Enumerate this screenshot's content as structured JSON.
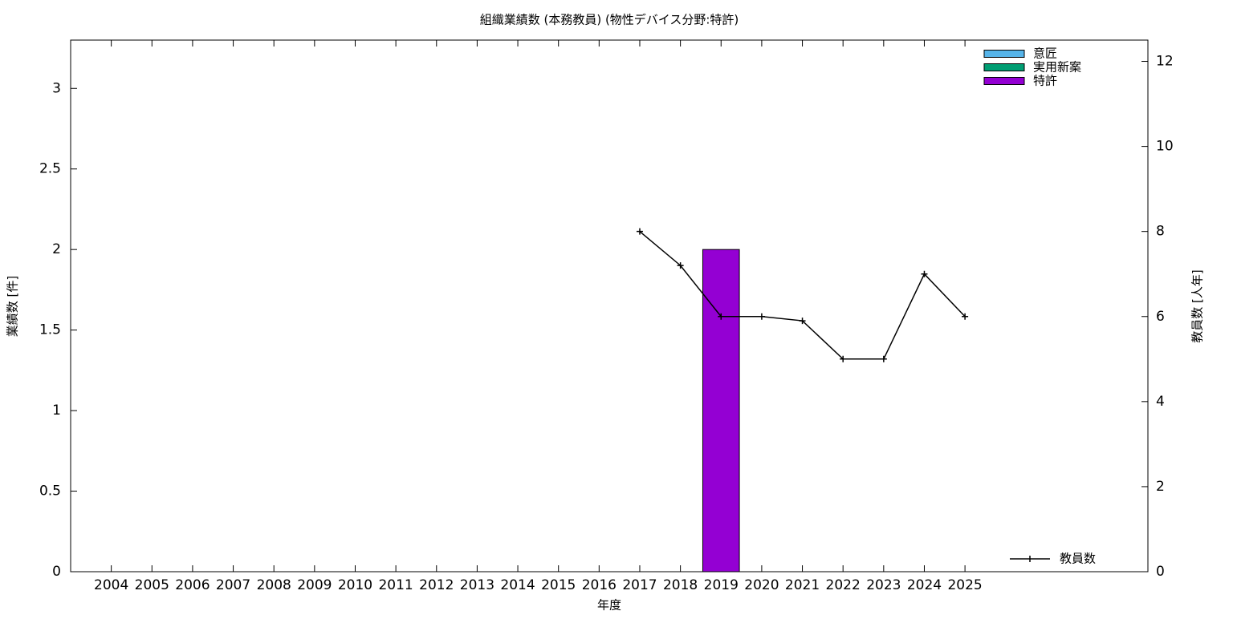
{
  "chart_data": {
    "type": "bar",
    "title": "組織業績数 (本務教員) (物性デバイス分野:特許)",
    "x_label": "年度",
    "y_label": "業績数 [件]",
    "y2_label": "教員数 [人年]",
    "categories": [
      "2004",
      "2005",
      "2006",
      "2007",
      "2008",
      "2009",
      "2010",
      "2011",
      "2012",
      "2013",
      "2014",
      "2015",
      "2016",
      "2017",
      "2018",
      "2019",
      "2020",
      "2021",
      "2022",
      "2023",
      "2024",
      "2025"
    ],
    "series": [
      {
        "name": "意匠",
        "type": "bar",
        "color": "#56b4e9",
        "values": [
          0,
          0,
          0,
          0,
          0,
          0,
          0,
          0,
          0,
          0,
          0,
          0,
          0,
          0,
          0,
          0,
          0,
          0,
          0,
          0,
          0,
          0
        ]
      },
      {
        "name": "実用新案",
        "type": "bar",
        "color": "#009e73",
        "values": [
          0,
          0,
          0,
          0,
          0,
          0,
          0,
          0,
          0,
          0,
          0,
          0,
          0,
          0,
          0,
          0,
          0,
          0,
          0,
          0,
          0,
          0
        ]
      },
      {
        "name": "特許",
        "type": "bar",
        "color": "#9400d3",
        "values": [
          0,
          0,
          0,
          0,
          0,
          0,
          0,
          0,
          0,
          0,
          0,
          0,
          0,
          0,
          0,
          2,
          0,
          0,
          0,
          0,
          0,
          0
        ]
      },
      {
        "name": "教員数",
        "type": "line",
        "axis": "y2",
        "color": "#000000",
        "values": [
          null,
          null,
          null,
          null,
          null,
          null,
          null,
          null,
          null,
          null,
          null,
          null,
          null,
          8,
          7.2,
          6,
          6,
          5.9,
          5,
          5,
          7,
          6
        ]
      }
    ],
    "ylim": [
      0,
      3.3
    ],
    "yticks": [
      0,
      0.5,
      1,
      1.5,
      2,
      2.5,
      3
    ],
    "y2lim": [
      0,
      12.5
    ],
    "y2ticks": [
      0,
      2,
      4,
      6,
      8,
      10,
      12
    ],
    "grid": false,
    "legend": "top right",
    "line_legend": "bottom right"
  }
}
